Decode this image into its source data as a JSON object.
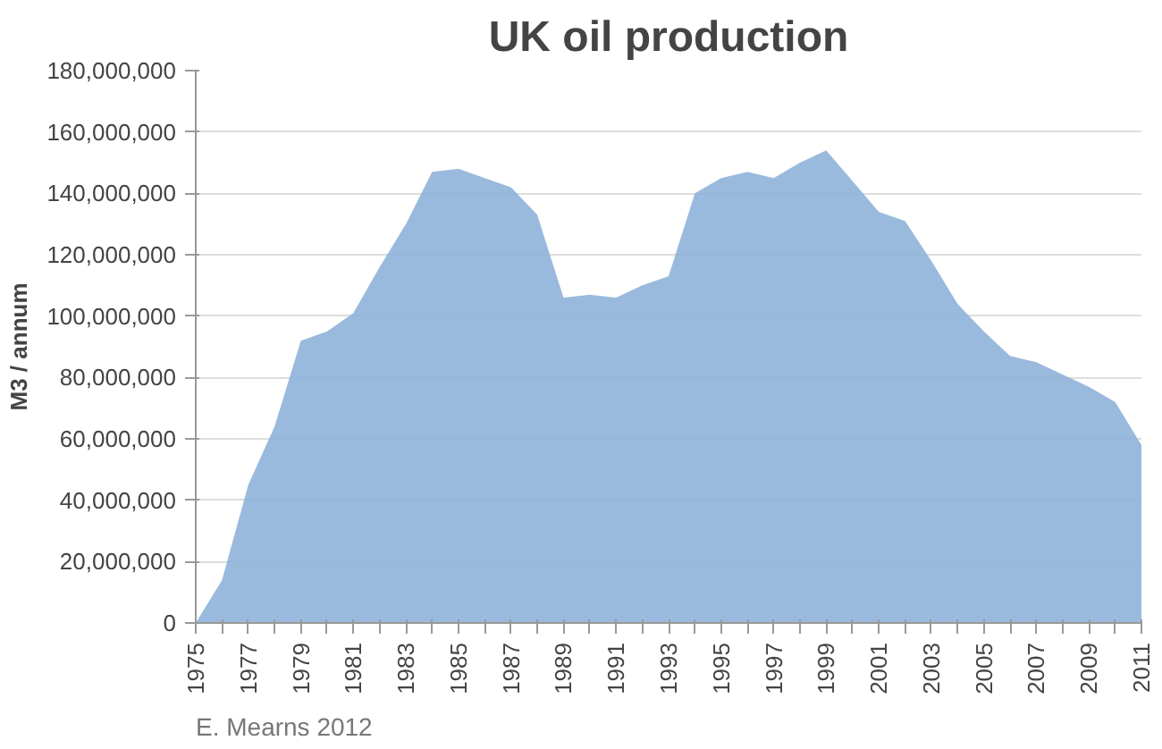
{
  "chart_data": {
    "type": "area",
    "title": "UK oil production",
    "ylabel": "M3 / annum",
    "x": [
      1975,
      1976,
      1977,
      1978,
      1979,
      1980,
      1981,
      1982,
      1983,
      1984,
      1985,
      1986,
      1987,
      1988,
      1989,
      1990,
      1991,
      1992,
      1993,
      1994,
      1995,
      1996,
      1997,
      1998,
      1999,
      2000,
      2001,
      2002,
      2003,
      2004,
      2005,
      2006,
      2007,
      2008,
      2009,
      2010,
      2011
    ],
    "series": [
      {
        "color": "#8fb3d9",
        "values": [
          0,
          14000000,
          45000000,
          64000000,
          92000000,
          95000000,
          101000000,
          116000000,
          130000000,
          147000000,
          148000000,
          145000000,
          142000000,
          133000000,
          106000000,
          107000000,
          106000000,
          110000000,
          113000000,
          140000000,
          145000000,
          147000000,
          145000000,
          150000000,
          154000000,
          144000000,
          134000000,
          131000000,
          118000000,
          104000000,
          95000000,
          87000000,
          85000000,
          81000000,
          77000000,
          72000000,
          58000000
        ]
      }
    ],
    "xlim": [
      1975,
      2011
    ],
    "ylim": [
      0,
      180000000
    ],
    "xticks": [
      1975,
      {
        "value": 1976,
        "label": null
      },
      1977,
      {
        "value": 1978,
        "label": null
      },
      1979,
      {
        "value": 1980,
        "label": null
      },
      1981,
      {
        "value": 1982,
        "label": null
      },
      1983,
      {
        "value": 1984,
        "label": null
      },
      1985,
      {
        "value": 1986,
        "label": null
      },
      1987,
      {
        "value": 1988,
        "label": null
      },
      1989,
      {
        "value": 1990,
        "label": null
      },
      1991,
      {
        "value": 1992,
        "label": null
      },
      1993,
      {
        "value": 1994,
        "label": null
      },
      1995,
      {
        "value": 1996,
        "label": null
      },
      1997,
      {
        "value": 1998,
        "label": null
      },
      1999,
      {
        "value": 2000,
        "label": null
      },
      2001,
      {
        "value": 2002,
        "label": null
      },
      2003,
      {
        "value": 2004,
        "label": null
      },
      2005,
      {
        "value": 2006,
        "label": null
      },
      2007,
      {
        "value": 2008,
        "label": null
      },
      2009,
      {
        "value": 2010,
        "label": null
      },
      2011
    ],
    "yticks": [
      {
        "value": 0,
        "label": "0"
      },
      {
        "value": 20000000,
        "label": "20,000,000"
      },
      {
        "value": 40000000,
        "label": "40,000,000"
      },
      {
        "value": 60000000,
        "label": "60,000,000"
      },
      {
        "value": 80000000,
        "label": "80,000,000"
      },
      {
        "value": 100000000,
        "label": "100,000,000"
      },
      {
        "value": 120000000,
        "label": "120,000,000"
      },
      {
        "value": 140000000,
        "label": "140,000,000"
      },
      {
        "value": 160000000,
        "label": "160,000,000"
      },
      {
        "value": 180000000,
        "label": "180,000,000"
      }
    ],
    "grid": "y",
    "annotations": [
      "E. Mearns 2012"
    ]
  }
}
